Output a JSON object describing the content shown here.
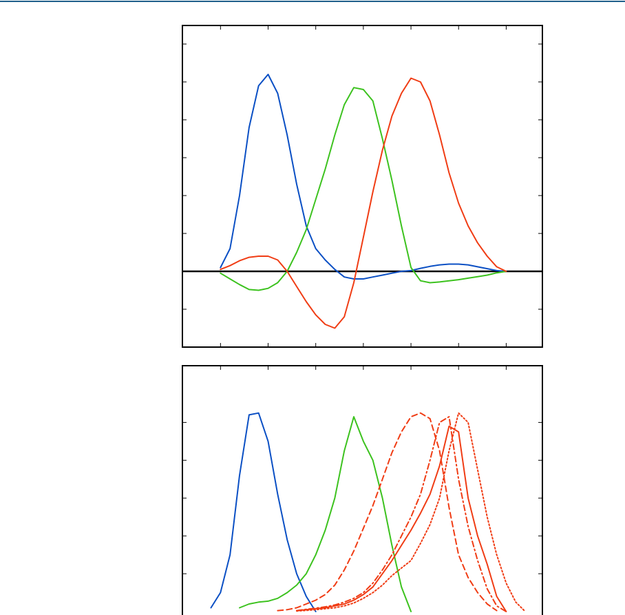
{
  "chart_data": [
    {
      "type": "line",
      "x": [
        400,
        410,
        420,
        430,
        440,
        450,
        460,
        470,
        480,
        490,
        500,
        510,
        520,
        530,
        540,
        550,
        560,
        570,
        580,
        590,
        600,
        610,
        620,
        630,
        640,
        650,
        660,
        670,
        680,
        690,
        700
      ],
      "xlim": [
        360,
        738
      ],
      "xticks": [
        400,
        450,
        500,
        550,
        600,
        650,
        700
      ],
      "ylim": [
        -0.2,
        0.649
      ],
      "yticks": [
        -0.1,
        0,
        0.1,
        0.2,
        0.3,
        0.4,
        0.5,
        0.6
      ],
      "zero_line": true,
      "series": [
        {
          "color": "#0a4fc4",
          "dash": "solid",
          "values": [
            0.01,
            0.06,
            0.2,
            0.38,
            0.49,
            0.52,
            0.47,
            0.36,
            0.23,
            0.12,
            0.06,
            0.03,
            0.005,
            -0.015,
            -0.02,
            -0.02,
            -0.015,
            -0.01,
            -0.005,
            0,
            0.002,
            0.008,
            0.013,
            0.017,
            0.019,
            0.019,
            0.017,
            0.012,
            0.007,
            0.002,
            0
          ]
        },
        {
          "color": "#3cc21e",
          "dash": "solid",
          "values": [
            -0.005,
            -0.02,
            -0.035,
            -0.048,
            -0.05,
            -0.045,
            -0.03,
            0,
            0.05,
            0.11,
            0.19,
            0.27,
            0.36,
            0.44,
            0.485,
            0.48,
            0.45,
            0.35,
            0.24,
            0.12,
            0.01,
            -0.025,
            -0.03,
            -0.028,
            -0.025,
            -0.022,
            -0.018,
            -0.014,
            -0.01,
            -0.004,
            0
          ]
        },
        {
          "color": "#f03c14",
          "dash": "solid",
          "values": [
            0.005,
            0.015,
            0.028,
            0.037,
            0.04,
            0.04,
            0.03,
            0,
            -0.04,
            -0.08,
            -0.115,
            -0.14,
            -0.15,
            -0.12,
            -0.03,
            0.09,
            0.21,
            0.32,
            0.41,
            0.47,
            0.51,
            0.5,
            0.45,
            0.36,
            0.26,
            0.18,
            0.12,
            0.075,
            0.04,
            0.012,
            0
          ]
        }
      ]
    },
    {
      "type": "line",
      "x": [
        380,
        390,
        400,
        410,
        420,
        430,
        440,
        450,
        460,
        470,
        480,
        490,
        500,
        510,
        520,
        530,
        540,
        550,
        560,
        570,
        580,
        590,
        600,
        610,
        620,
        630,
        640,
        650,
        660,
        670,
        680,
        690,
        700,
        710,
        720
      ],
      "xlim": [
        360,
        738
      ],
      "xticks": [
        400,
        450,
        500,
        550,
        600,
        650,
        700
      ],
      "ylim": [
        0,
        1.3
      ],
      "yticks": [
        0.2,
        0.4,
        0.6,
        0.8,
        1.0
      ],
      "zero_line": false,
      "series": [
        {
          "color": "#0a4fc4",
          "dash": "solid",
          "values": [
            null,
            0.02,
            0.1,
            0.3,
            0.72,
            1.04,
            1.05,
            0.9,
            0.62,
            0.38,
            0.2,
            0.08,
            0,
            null,
            null,
            null,
            null,
            null,
            null,
            null,
            null,
            null,
            null,
            null,
            null,
            null,
            null,
            null,
            null,
            null,
            null,
            null,
            null,
            null,
            null
          ]
        },
        {
          "color": "#3cc21e",
          "dash": "solid",
          "values": [
            null,
            null,
            null,
            null,
            0.02,
            0.04,
            0.05,
            0.055,
            0.07,
            0.1,
            0.14,
            0.2,
            0.3,
            0.43,
            0.6,
            0.85,
            1.03,
            0.9,
            0.8,
            0.6,
            0.35,
            0.13,
            0,
            null,
            null,
            null,
            null,
            null,
            null,
            null,
            null,
            null,
            null,
            null,
            null
          ]
        },
        {
          "color": "#f03c14",
          "dash": "dashed",
          "values": [
            null,
            null,
            null,
            null,
            null,
            null,
            null,
            null,
            0.005,
            0.01,
            0.02,
            0.04,
            0.06,
            0.09,
            0.14,
            0.22,
            0.32,
            0.44,
            0.56,
            0.7,
            0.84,
            0.95,
            1.03,
            1.05,
            1.02,
            0.85,
            0.55,
            0.3,
            0.18,
            0.1,
            0.04,
            0.005,
            null,
            null,
            null
          ]
        },
        {
          "color": "#f03c14",
          "dash": "dashdot",
          "values": [
            null,
            null,
            null,
            null,
            null,
            null,
            null,
            null,
            null,
            null,
            0.005,
            0.012,
            0.018,
            0.025,
            0.035,
            0.05,
            0.07,
            0.1,
            0.15,
            0.22,
            0.3,
            0.4,
            0.5,
            0.62,
            0.8,
            1.0,
            1.03,
            0.7,
            0.45,
            0.27,
            0.12,
            0.03,
            0,
            null,
            null
          ]
        },
        {
          "color": "#f03c14",
          "dash": "solid",
          "values": [
            null,
            null,
            null,
            null,
            null,
            null,
            null,
            null,
            null,
            null,
            0.005,
            0.01,
            0.015,
            0.02,
            0.03,
            0.04,
            0.06,
            0.09,
            0.13,
            0.2,
            0.27,
            0.35,
            0.43,
            0.52,
            0.62,
            0.77,
            0.98,
            0.95,
            0.6,
            0.4,
            0.25,
            0.08,
            0,
            null,
            null
          ]
        },
        {
          "color": "#f03c14",
          "dash": "dotted",
          "values": [
            null,
            null,
            null,
            null,
            null,
            null,
            null,
            null,
            null,
            null,
            0.003,
            0.006,
            0.01,
            0.015,
            0.02,
            0.03,
            0.045,
            0.07,
            0.1,
            0.14,
            0.19,
            0.23,
            0.27,
            0.36,
            0.46,
            0.6,
            0.85,
            1.05,
            1.0,
            0.75,
            0.5,
            0.3,
            0.15,
            0.05,
            0
          ]
        }
      ]
    }
  ]
}
